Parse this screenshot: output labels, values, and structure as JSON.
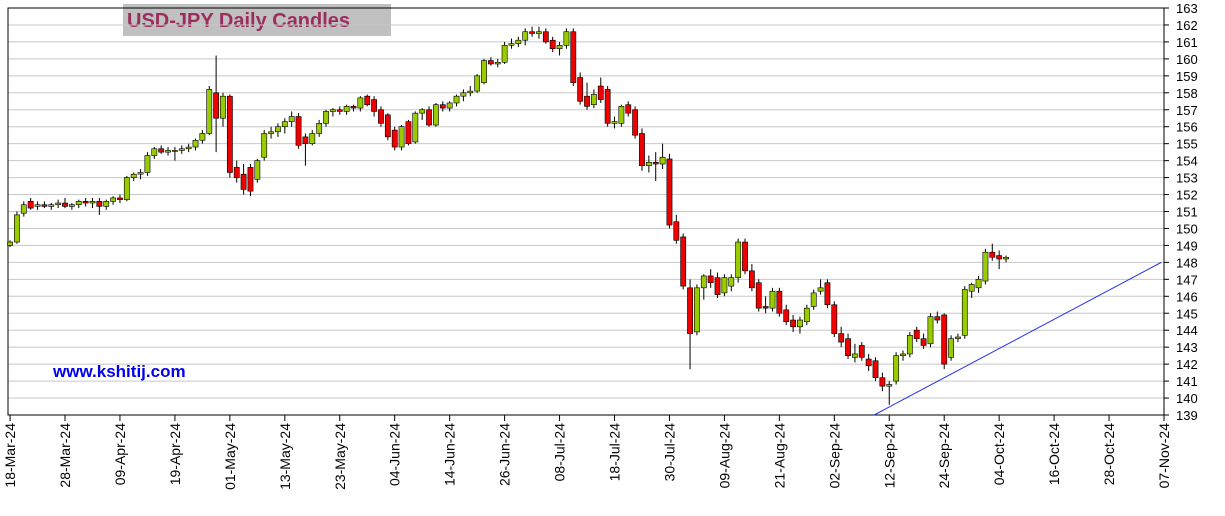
{
  "chart_data": {
    "type": "candlestick",
    "title": "USD-JPY Daily Candles",
    "watermark": "www.kshitij.com",
    "up_color": "#99cc00",
    "down_color": "#ee0000",
    "grid": true,
    "ylim": [
      139,
      163
    ],
    "yticks": [
      139,
      140,
      141,
      142,
      143,
      144,
      145,
      146,
      147,
      148,
      149,
      150,
      151,
      152,
      153,
      154,
      155,
      156,
      157,
      158,
      159,
      160,
      161,
      162,
      163
    ],
    "xlim": [
      -0.3,
      168
    ],
    "xticks": [
      {
        "value": 0,
        "label": "18-Mar-24"
      },
      {
        "value": 8,
        "label": "28-Mar-24"
      },
      {
        "value": 16,
        "label": "09-Apr-24"
      },
      {
        "value": 24,
        "label": "19-Apr-24"
      },
      {
        "value": 32,
        "label": "01-May-24"
      },
      {
        "value": 40,
        "label": "13-May-24"
      },
      {
        "value": 48,
        "label": "23-May-24"
      },
      {
        "value": 56,
        "label": "04-Jun-24"
      },
      {
        "value": 64,
        "label": "14-Jun-24"
      },
      {
        "value": 72,
        "label": "26-Jun-24"
      },
      {
        "value": 80,
        "label": "08-Jul-24"
      },
      {
        "value": 88,
        "label": "18-Jul-24"
      },
      {
        "value": 96,
        "label": "30-Jul-24"
      },
      {
        "value": 104,
        "label": "09-Aug-24"
      },
      {
        "value": 112,
        "label": "21-Aug-24"
      },
      {
        "value": 120,
        "label": "02-Sep-24"
      },
      {
        "value": 128,
        "label": "12-Sep-24"
      },
      {
        "value": 136,
        "label": "24-Sep-24"
      },
      {
        "value": 144,
        "label": "04-Oct-24"
      },
      {
        "value": 152,
        "label": "16-Oct-24"
      },
      {
        "value": 160,
        "label": "28-Oct-24"
      },
      {
        "value": 168,
        "label": "07-Nov-24"
      }
    ],
    "trendline": {
      "x": [
        125.8,
        167.6
      ],
      "y": [
        139,
        148
      ],
      "color": "#2233ee"
    },
    "candles": [
      [
        149.0,
        149.3,
        148.9,
        149.2
      ],
      [
        149.2,
        151.0,
        149.1,
        150.8
      ],
      [
        150.9,
        151.6,
        150.7,
        151.4
      ],
      [
        151.6,
        151.8,
        151.1,
        151.2
      ],
      [
        151.3,
        151.6,
        151.1,
        151.4
      ],
      [
        151.4,
        151.6,
        151.2,
        151.3
      ],
      [
        151.3,
        151.5,
        151.1,
        151.4
      ],
      [
        151.4,
        151.7,
        151.2,
        151.5
      ],
      [
        151.5,
        151.8,
        151.2,
        151.3
      ],
      [
        151.3,
        151.5,
        151.1,
        151.4
      ],
      [
        151.4,
        151.7,
        151.2,
        151.6
      ],
      [
        151.6,
        151.8,
        151.3,
        151.5
      ],
      [
        151.5,
        151.8,
        151.2,
        151.6
      ],
      [
        151.6,
        151.8,
        150.8,
        151.3
      ],
      [
        151.3,
        151.7,
        151.1,
        151.6
      ],
      [
        151.6,
        151.9,
        151.4,
        151.8
      ],
      [
        151.8,
        152.0,
        151.5,
        151.7
      ],
      [
        151.7,
        153.1,
        151.6,
        153.0
      ],
      [
        153.0,
        153.3,
        152.8,
        153.2
      ],
      [
        153.2,
        153.5,
        152.9,
        153.3
      ],
      [
        153.3,
        154.5,
        153.1,
        154.3
      ],
      [
        154.3,
        154.8,
        154.1,
        154.7
      ],
      [
        154.7,
        154.9,
        154.4,
        154.5
      ],
      [
        154.5,
        154.8,
        154.3,
        154.6
      ],
      [
        154.6,
        154.8,
        154.0,
        154.6
      ],
      [
        154.6,
        154.9,
        154.4,
        154.7
      ],
      [
        154.7,
        155.0,
        154.5,
        154.8
      ],
      [
        154.8,
        155.3,
        154.6,
        155.2
      ],
      [
        155.2,
        155.8,
        155.0,
        155.6
      ],
      [
        155.6,
        158.4,
        155.5,
        158.2
      ],
      [
        158.0,
        160.2,
        154.5,
        156.5
      ],
      [
        156.5,
        158.0,
        156.0,
        157.8
      ],
      [
        157.8,
        157.9,
        153.0,
        153.3
      ],
      [
        153.6,
        154.0,
        152.7,
        153.0
      ],
      [
        153.2,
        153.8,
        152.0,
        152.3
      ],
      [
        153.6,
        153.8,
        151.9,
        152.2
      ],
      [
        152.9,
        154.1,
        152.7,
        154.0
      ],
      [
        154.2,
        155.8,
        154.0,
        155.6
      ],
      [
        155.6,
        156.0,
        155.3,
        155.7
      ],
      [
        155.7,
        156.2,
        155.4,
        156.0
      ],
      [
        156.0,
        156.5,
        155.6,
        156.3
      ],
      [
        156.3,
        156.9,
        156.0,
        156.6
      ],
      [
        156.6,
        156.8,
        154.7,
        154.9
      ],
      [
        155.4,
        155.6,
        153.7,
        155.0
      ],
      [
        155.0,
        155.8,
        154.9,
        155.6
      ],
      [
        155.6,
        156.4,
        155.4,
        156.2
      ],
      [
        156.2,
        157.0,
        156.0,
        156.9
      ],
      [
        156.9,
        157.1,
        156.6,
        157.0
      ],
      [
        157.0,
        157.2,
        156.7,
        156.9
      ],
      [
        156.9,
        157.3,
        156.7,
        157.2
      ],
      [
        157.2,
        157.3,
        156.9,
        157.1
      ],
      [
        157.1,
        157.8,
        156.9,
        157.7
      ],
      [
        157.8,
        157.9,
        157.2,
        157.3
      ],
      [
        157.6,
        157.8,
        156.6,
        156.9
      ],
      [
        157.0,
        157.2,
        156.0,
        156.2
      ],
      [
        156.7,
        156.8,
        155.2,
        155.4
      ],
      [
        155.8,
        156.0,
        154.6,
        154.8
      ],
      [
        154.8,
        156.1,
        154.6,
        156.0
      ],
      [
        156.3,
        156.4,
        154.9,
        155.0
      ],
      [
        155.1,
        156.9,
        155.0,
        156.8
      ],
      [
        156.8,
        157.1,
        156.4,
        157.0
      ],
      [
        157.0,
        157.2,
        156.0,
        156.1
      ],
      [
        156.1,
        157.4,
        156.0,
        157.3
      ],
      [
        157.3,
        157.5,
        156.9,
        157.1
      ],
      [
        157.1,
        157.5,
        156.9,
        157.4
      ],
      [
        157.4,
        157.9,
        157.2,
        157.8
      ],
      [
        157.8,
        158.2,
        157.5,
        158.0
      ],
      [
        158.0,
        158.4,
        157.8,
        158.1
      ],
      [
        158.1,
        159.1,
        158.0,
        159.0
      ],
      [
        158.6,
        160.0,
        158.5,
        159.9
      ],
      [
        159.9,
        160.1,
        159.6,
        159.7
      ],
      [
        159.7,
        160.0,
        159.5,
        159.8
      ],
      [
        159.8,
        161.0,
        159.7,
        160.8
      ],
      [
        160.8,
        161.2,
        160.6,
        160.9
      ],
      [
        160.9,
        161.3,
        160.7,
        161.1
      ],
      [
        161.1,
        161.8,
        160.8,
        161.6
      ],
      [
        161.6,
        161.9,
        161.3,
        161.5
      ],
      [
        161.5,
        161.9,
        161.2,
        161.6
      ],
      [
        161.6,
        161.8,
        160.9,
        161.0
      ],
      [
        161.1,
        161.3,
        160.4,
        160.6
      ],
      [
        160.6,
        161.0,
        160.2,
        160.8
      ],
      [
        160.8,
        161.8,
        160.6,
        161.6
      ],
      [
        161.6,
        161.8,
        158.4,
        158.6
      ],
      [
        158.9,
        159.2,
        157.3,
        157.5
      ],
      [
        157.8,
        158.6,
        157.0,
        157.2
      ],
      [
        157.3,
        158.2,
        157.1,
        157.9
      ],
      [
        158.4,
        158.9,
        157.4,
        157.6
      ],
      [
        158.2,
        158.4,
        156.0,
        156.2
      ],
      [
        156.2,
        156.6,
        155.9,
        156.3
      ],
      [
        156.2,
        157.3,
        156.0,
        157.2
      ],
      [
        157.3,
        157.5,
        156.6,
        156.8
      ],
      [
        157.0,
        157.2,
        155.3,
        155.5
      ],
      [
        155.6,
        155.9,
        153.4,
        153.7
      ],
      [
        153.7,
        154.3,
        153.3,
        153.9
      ],
      [
        153.9,
        154.5,
        152.8,
        153.8
      ],
      [
        153.8,
        155.0,
        153.5,
        154.2
      ],
      [
        154.1,
        154.4,
        150.0,
        150.2
      ],
      [
        150.4,
        150.8,
        149.1,
        149.3
      ],
      [
        149.5,
        149.7,
        146.4,
        146.6
      ],
      [
        146.5,
        147.0,
        141.7,
        143.8
      ],
      [
        143.9,
        146.7,
        143.7,
        146.5
      ],
      [
        146.5,
        147.3,
        145.8,
        147.2
      ],
      [
        147.2,
        147.6,
        146.5,
        146.8
      ],
      [
        147.1,
        147.4,
        145.9,
        146.1
      ],
      [
        146.2,
        147.3,
        146.0,
        147.1
      ],
      [
        146.6,
        147.3,
        146.3,
        147.1
      ],
      [
        147.1,
        149.4,
        146.8,
        149.2
      ],
      [
        149.2,
        149.4,
        147.3,
        147.5
      ],
      [
        147.5,
        147.9,
        146.3,
        146.5
      ],
      [
        146.8,
        147.0,
        145.1,
        145.3
      ],
      [
        145.4,
        146.0,
        145.0,
        145.3
      ],
      [
        145.3,
        146.5,
        145.1,
        146.3
      ],
      [
        146.3,
        146.5,
        144.8,
        145.0
      ],
      [
        145.2,
        145.5,
        144.3,
        144.5
      ],
      [
        144.6,
        144.9,
        143.9,
        144.2
      ],
      [
        144.2,
        144.8,
        143.8,
        144.6
      ],
      [
        144.5,
        145.5,
        144.3,
        145.3
      ],
      [
        145.4,
        146.4,
        145.2,
        146.2
      ],
      [
        146.3,
        147.0,
        146.1,
        146.5
      ],
      [
        146.8,
        147.0,
        145.3,
        145.5
      ],
      [
        145.5,
        145.7,
        143.6,
        143.8
      ],
      [
        143.8,
        144.2,
        143.0,
        143.3
      ],
      [
        143.5,
        143.8,
        142.3,
        142.5
      ],
      [
        142.4,
        143.2,
        142.1,
        142.6
      ],
      [
        143.1,
        143.3,
        142.2,
        142.4
      ],
      [
        142.3,
        142.6,
        141.6,
        141.9
      ],
      [
        142.2,
        142.4,
        141.0,
        141.2
      ],
      [
        141.2,
        141.5,
        140.4,
        140.7
      ],
      [
        140.7,
        141.0,
        139.6,
        140.8
      ],
      [
        141.0,
        142.7,
        140.8,
        142.5
      ],
      [
        142.5,
        142.8,
        142.2,
        142.6
      ],
      [
        142.6,
        143.9,
        142.4,
        143.7
      ],
      [
        144.0,
        144.2,
        143.3,
        143.5
      ],
      [
        143.5,
        143.8,
        142.9,
        143.1
      ],
      [
        143.2,
        145.0,
        143.0,
        144.8
      ],
      [
        144.8,
        145.1,
        144.4,
        144.6
      ],
      [
        144.9,
        145.0,
        141.7,
        142.0
      ],
      [
        142.4,
        143.7,
        142.2,
        143.5
      ],
      [
        143.5,
        143.8,
        143.3,
        143.6
      ],
      [
        143.7,
        146.6,
        143.5,
        146.4
      ],
      [
        146.3,
        146.8,
        145.9,
        146.7
      ],
      [
        146.5,
        147.2,
        146.2,
        147.0
      ],
      [
        146.9,
        148.8,
        146.7,
        148.6
      ],
      [
        148.6,
        149.1,
        148.1,
        148.3
      ],
      [
        148.4,
        148.7,
        147.6,
        148.2
      ],
      [
        148.2,
        148.4,
        148.0,
        148.3
      ]
    ]
  }
}
